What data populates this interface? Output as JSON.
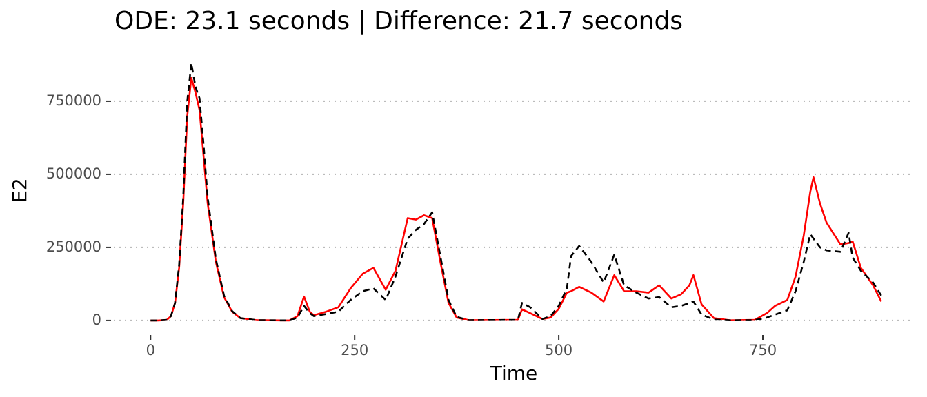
{
  "chart_data": {
    "type": "line",
    "title": "ODE: 23.1 seconds | Difference: 21.7 seconds",
    "x_label": "Time",
    "y_label": "E2",
    "x": [
      0,
      10,
      20,
      25,
      30,
      35,
      40,
      45,
      50,
      55,
      60,
      65,
      70,
      80,
      90,
      100,
      110,
      130,
      170,
      180,
      188,
      195,
      200,
      215,
      230,
      245,
      260,
      273,
      288,
      300,
      315,
      325,
      335,
      345,
      355,
      365,
      375,
      390,
      450,
      455,
      465,
      480,
      490,
      500,
      510,
      515,
      525,
      540,
      555,
      568,
      580,
      595,
      610,
      623,
      638,
      650,
      660,
      665,
      675,
      690,
      710,
      740,
      755,
      765,
      780,
      790,
      800,
      808,
      812,
      820,
      828,
      845,
      855,
      860,
      870,
      885,
      895
    ],
    "series": [
      {
        "color": "#ff0000",
        "dashed": false,
        "values": [
          0,
          0,
          2000,
          15000,
          60000,
          180000,
          400000,
          700000,
          830000,
          780000,
          720000,
          560000,
          400000,
          200000,
          80000,
          30000,
          8000,
          1000,
          0,
          15000,
          82000,
          30000,
          18000,
          30000,
          45000,
          110000,
          160000,
          180000,
          105000,
          170000,
          350000,
          345000,
          360000,
          350000,
          200000,
          60000,
          10000,
          1000,
          2000,
          38000,
          25000,
          5000,
          10000,
          40000,
          95000,
          100000,
          115000,
          95000,
          65000,
          155000,
          100000,
          100000,
          95000,
          120000,
          75000,
          90000,
          120000,
          155000,
          55000,
          8000,
          500,
          2000,
          25000,
          50000,
          70000,
          150000,
          290000,
          440000,
          490000,
          400000,
          335000,
          260000,
          265000,
          270000,
          180000,
          120000,
          65000
        ]
      },
      {
        "color": "#000000",
        "dashed": true,
        "values": [
          0,
          0,
          2000,
          15000,
          60000,
          190000,
          420000,
          750000,
          880000,
          800000,
          760000,
          600000,
          420000,
          210000,
          85000,
          32000,
          8000,
          1000,
          0,
          10000,
          50000,
          25000,
          15000,
          22000,
          30000,
          70000,
          100000,
          110000,
          70000,
          150000,
          280000,
          310000,
          330000,
          370000,
          220000,
          70000,
          12000,
          1000,
          2000,
          60000,
          45000,
          5000,
          15000,
          50000,
          110000,
          220000,
          255000,
          200000,
          130000,
          225000,
          120000,
          95000,
          75000,
          80000,
          45000,
          50000,
          60000,
          65000,
          20000,
          3000,
          500,
          1000,
          10000,
          20000,
          35000,
          100000,
          200000,
          295000,
          280000,
          250000,
          240000,
          235000,
          300000,
          215000,
          170000,
          130000,
          85000
        ]
      }
    ],
    "xlim": [
      -45,
      935
    ],
    "ylim": [
      -45000,
      889000
    ],
    "xticks": [
      0,
      250,
      500,
      750
    ],
    "yticks": [
      0,
      250000,
      500000,
      750000
    ],
    "grid": "y"
  }
}
